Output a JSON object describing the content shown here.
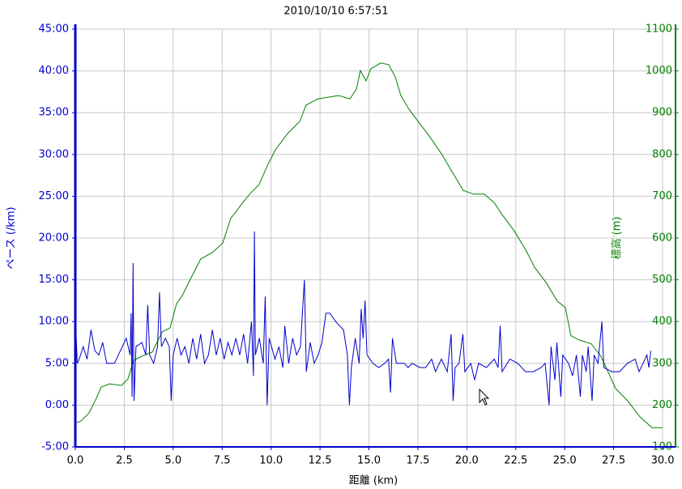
{
  "chart_data": {
    "type": "line",
    "title": "2010/10/10 6:57:51",
    "xlabel": "距離 (km)",
    "ylabel": "ペース (/km)",
    "y2label": "標高 (m)",
    "xlim": [
      0,
      30.66
    ],
    "xticks": [
      {
        "value": 0,
        "label": "0.0"
      },
      2.5,
      {
        "value": 5,
        "label": "5.0"
      },
      7.5,
      {
        "value": 10,
        "label": "10.0"
      },
      12.5,
      {
        "value": 15,
        "label": "15.0"
      },
      17.5,
      {
        "value": 20,
        "label": "20.0"
      },
      22.5,
      {
        "value": 25,
        "label": "25.0"
      },
      27.5,
      {
        "value": 30,
        "label": "30.0"
      }
    ],
    "ylim": [
      -5,
      45
    ],
    "yticks": [
      {
        "value": -5,
        "label": "-5:00"
      },
      {
        "value": 0,
        "label": "0:00"
      },
      {
        "value": 5,
        "label": "5:00"
      },
      {
        "value": 10,
        "label": "10:00"
      },
      {
        "value": 15,
        "label": "15:00"
      },
      {
        "value": 20,
        "label": "20:00"
      },
      {
        "value": 25,
        "label": "25:00"
      },
      {
        "value": 30,
        "label": "30:00"
      },
      {
        "value": 35,
        "label": "35:00"
      },
      {
        "value": 40,
        "label": "40:00"
      },
      {
        "value": 45,
        "label": "45:00"
      }
    ],
    "y2lim": [
      100,
      1100
    ],
    "y2ticks": [
      100,
      200,
      300,
      400,
      500,
      600,
      700,
      800,
      900,
      1000,
      1100
    ],
    "grid": true,
    "series": [
      {
        "color": "#0000cc",
        "x": [
          0,
          0.1,
          0.2,
          0.4,
          0.6,
          0.8,
          1,
          1.2,
          1.4,
          1.6,
          2,
          2.4,
          2.6,
          2.8,
          2.85,
          2.9,
          2.95,
          3.0,
          3.1,
          3.4,
          3.6,
          3.7,
          3.8,
          4.0,
          4.2,
          4.3,
          4.4,
          4.6,
          4.8,
          4.9,
          5.0,
          5.2,
          5.4,
          5.6,
          5.8,
          6.0,
          6.2,
          6.4,
          6.6,
          6.8,
          7.0,
          7.2,
          7.4,
          7.6,
          7.8,
          8.0,
          8.2,
          8.4,
          8.6,
          8.8,
          9.0,
          9.1,
          9.15,
          9.2,
          9.4,
          9.6,
          9.7,
          9.8,
          9.9,
          10.2,
          10.4,
          10.6,
          10.7,
          10.9,
          11.1,
          11.3,
          11.5,
          11.7,
          11.8,
          12.0,
          12.2,
          12.4,
          12.6,
          12.8,
          13.0,
          13.3,
          13.7,
          13.9,
          14.0,
          14.1,
          14.3,
          14.5,
          14.6,
          14.7,
          14.8,
          14.9,
          15.2,
          15.5,
          15.8,
          16.0,
          16.1,
          16.2,
          16.4,
          16.8,
          17.0,
          17.2,
          17.6,
          17.9,
          18.2,
          18.4,
          18.7,
          19.0,
          19.2,
          19.3,
          19.4,
          19.6,
          19.8,
          19.9,
          20.2,
          20.4,
          20.6,
          21.0,
          21.4,
          21.6,
          21.7,
          21.8,
          22.2,
          22.6,
          23.0,
          23.4,
          23.8,
          24.0,
          24.2,
          24.3,
          24.5,
          24.6,
          24.8,
          24.9,
          25.2,
          25.4,
          25.6,
          25.8,
          25.9,
          26.1,
          26.2,
          26.4,
          26.5,
          26.7,
          26.9,
          27.0,
          27.4,
          27.8,
          28.2,
          28.6,
          28.8,
          29.0,
          29.2,
          29.3,
          29.4
        ],
        "values": [
          10.8,
          5,
          5.5,
          7,
          5.5,
          9,
          6.5,
          6,
          7.5,
          5,
          5,
          7,
          8,
          6,
          11,
          1,
          17,
          0.5,
          7,
          7.5,
          6,
          12,
          6,
          5,
          7,
          13.5,
          7,
          8,
          7,
          0.5,
          6,
          8,
          6,
          7,
          5,
          8,
          5.5,
          8.5,
          5,
          6,
          9,
          6,
          8,
          5.5,
          7.5,
          6,
          8,
          6,
          8.5,
          5,
          10,
          3.5,
          20.8,
          6,
          8,
          5,
          13,
          0,
          8,
          5.5,
          7,
          4.5,
          9.5,
          5,
          8,
          6,
          7,
          15,
          4,
          7.5,
          5,
          6,
          7.5,
          11,
          11,
          10,
          9,
          6,
          0,
          4.5,
          8,
          5,
          11.5,
          8,
          12.5,
          6,
          5,
          4.5,
          5,
          5.5,
          1.5,
          8,
          5,
          5,
          4.5,
          5,
          4.5,
          4.5,
          5.5,
          4,
          5.5,
          4,
          8.5,
          0.5,
          4.5,
          5,
          8.5,
          4,
          5,
          3,
          5,
          4.5,
          5.5,
          4.5,
          9.5,
          4,
          5.5,
          5,
          4,
          4,
          4.5,
          5,
          0,
          7,
          3,
          7.5,
          1,
          6,
          5,
          3.5,
          6,
          1,
          6,
          4,
          7,
          0.5,
          6,
          5,
          10,
          4.5,
          4,
          4,
          5,
          5.5,
          4,
          5,
          6,
          4.5,
          6.5
        ]
      },
      {
        "color": "#008000",
        "axis": "y2",
        "x": [
          0.08,
          0.29,
          0.7,
          1.03,
          1.32,
          1.74,
          2.36,
          2.69,
          2.98,
          3.39,
          3.93,
          4.43,
          4.84,
          5.17,
          5.46,
          5.87,
          6.41,
          6.99,
          7.53,
          7.94,
          8.56,
          8.98,
          9.39,
          9.8,
          10.22,
          10.84,
          11.46,
          11.79,
          12.37,
          12.91,
          13.45,
          14.03,
          14.36,
          14.56,
          14.85,
          15.1,
          15.6,
          16.01,
          16.34,
          16.63,
          17.05,
          17.67,
          18.08,
          18.7,
          19.32,
          19.82,
          20.35,
          20.89,
          21.39,
          21.8,
          22.42,
          23.04,
          23.46,
          24.08,
          24.62,
          25.03,
          25.32,
          25.73,
          26.35,
          26.85,
          27.6,
          28.22,
          28.84,
          29.46,
          30.0
        ],
        "values": [
          158,
          162,
          181,
          212,
          243,
          251,
          247,
          263,
          307,
          317,
          327,
          375,
          385,
          443,
          462,
          501,
          550,
          565,
          588,
          647,
          685,
          709,
          728,
          772,
          811,
          850,
          879,
          918,
          933,
          937,
          941,
          933,
          957,
          1001,
          976,
          1005,
          1019,
          1015,
          986,
          941,
          908,
          869,
          844,
          802,
          753,
          714,
          705,
          705,
          685,
          656,
          617,
          569,
          530,
          491,
          449,
          434,
          366,
          356,
          347,
          317,
          240,
          210,
          172,
          146,
          146
        ]
      }
    ]
  }
}
